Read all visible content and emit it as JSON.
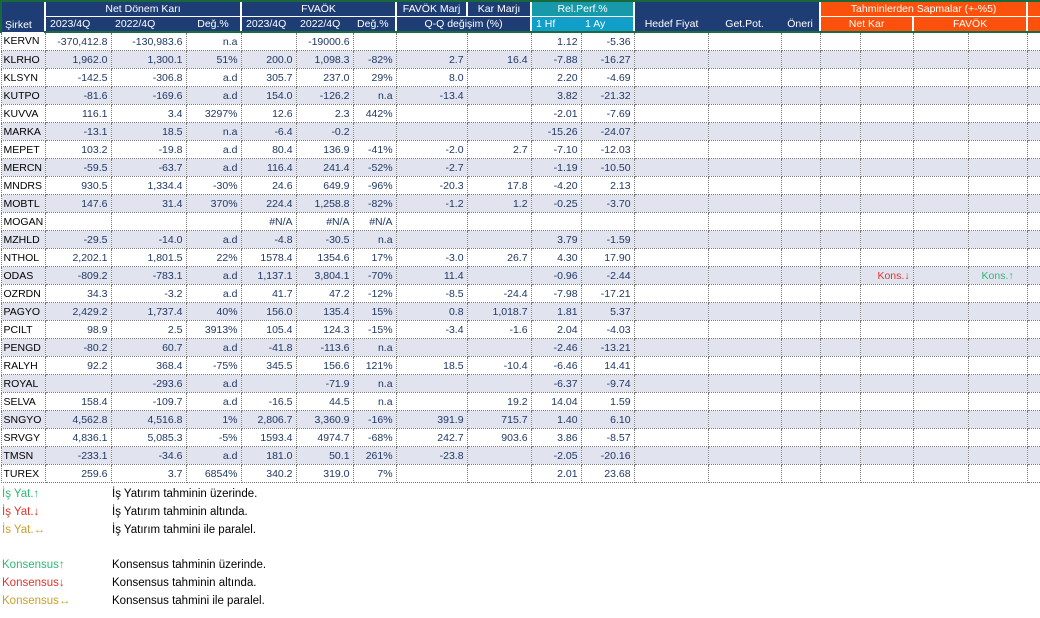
{
  "header": {
    "sirket": "Şirket",
    "groups": {
      "ndk": "Net Dönem Karı",
      "fvaok": "FVAÖK",
      "favok_marj": "FAVÖK Marj",
      "kar_marji": "Kar Marjı",
      "rel_perf": "Rel.Perf.%",
      "sapmalar": "Tahminlerden Sapmalar (+-%5)"
    },
    "sub": {
      "q23": "2023/4Q",
      "q22": "2022/4Q",
      "chg": "Değ.%",
      "qq": "Q-Q değişim (%)",
      "hf": "1 Hf",
      "ay": "1 Ay",
      "hedef": "Hedef Fiyat",
      "getpot": "Get.Pot.",
      "oneri": "Öneri",
      "netkar": "Net Kar",
      "favok": "FAVÖK"
    }
  },
  "rows": [
    {
      "ticker": "KERVN",
      "ndk23": "-370,412.8",
      "ndk22": "-130,983.6",
      "ndkchg": "n.a",
      "fv23": "",
      "fv22": "-19000.6",
      "fvchg": "",
      "qq": "",
      "kar": "",
      "hf": "1.12",
      "ay": "-5.36",
      "hedef": "",
      "getpot": "",
      "oneri": "",
      "nk_a": "",
      "nk_b": "",
      "fv_a": "",
      "fv_b": ""
    },
    {
      "ticker": "KLRHO",
      "ndk23": "1,962.0",
      "ndk22": "1,300.1",
      "ndkchg": "51%",
      "fv23": "200.0",
      "fv22": "1,098.3",
      "fvchg": "-82%",
      "qq": "2.7",
      "kar": "16.4",
      "hf": "-7.88",
      "ay": "-16.27",
      "hedef": "",
      "getpot": "",
      "oneri": "",
      "nk_a": "",
      "nk_b": "",
      "fv_a": "",
      "fv_b": ""
    },
    {
      "ticker": "KLSYN",
      "ndk23": "-142.5",
      "ndk22": "-306.8",
      "ndkchg": "a.d",
      "fv23": "305.7",
      "fv22": "237.0",
      "fvchg": "29%",
      "qq": "8.0",
      "kar": "",
      "hf": "2.20",
      "ay": "-4.69",
      "hedef": "",
      "getpot": "",
      "oneri": "",
      "nk_a": "",
      "nk_b": "",
      "fv_a": "",
      "fv_b": ""
    },
    {
      "ticker": "KUTPO",
      "ndk23": "-81.6",
      "ndk22": "-169.6",
      "ndkchg": "a.d",
      "fv23": "154.0",
      "fv22": "-126.2",
      "fvchg": "n.a",
      "qq": "-13.4",
      "kar": "",
      "hf": "3.82",
      "ay": "-21.32",
      "hedef": "",
      "getpot": "",
      "oneri": "",
      "nk_a": "",
      "nk_b": "",
      "fv_a": "",
      "fv_b": ""
    },
    {
      "ticker": "KUVVA",
      "ndk23": "116.1",
      "ndk22": "3.4",
      "ndkchg": "3297%",
      "fv23": "12.6",
      "fv22": "2.3",
      "fvchg": "442%",
      "qq": "",
      "kar": "",
      "hf": "-2.01",
      "ay": "-7.69",
      "hedef": "",
      "getpot": "",
      "oneri": "",
      "nk_a": "",
      "nk_b": "",
      "fv_a": "",
      "fv_b": ""
    },
    {
      "ticker": "MARKA",
      "ndk23": "-13.1",
      "ndk22": "18.5",
      "ndkchg": "n.a",
      "fv23": "-6.4",
      "fv22": "-0.2",
      "fvchg": "",
      "qq": "",
      "kar": "",
      "hf": "-15.26",
      "ay": "-24.07",
      "hedef": "",
      "getpot": "",
      "oneri": "",
      "nk_a": "",
      "nk_b": "",
      "fv_a": "",
      "fv_b": ""
    },
    {
      "ticker": "MEPET",
      "ndk23": "103.2",
      "ndk22": "-19.8",
      "ndkchg": "a.d",
      "fv23": "80.4",
      "fv22": "136.9",
      "fvchg": "-41%",
      "qq": "-2.0",
      "kar": "2.7",
      "hf": "-7.10",
      "ay": "-12.03",
      "hedef": "",
      "getpot": "",
      "oneri": "",
      "nk_a": "",
      "nk_b": "",
      "fv_a": "",
      "fv_b": ""
    },
    {
      "ticker": "MERCN",
      "ndk23": "-59.5",
      "ndk22": "-63.7",
      "ndkchg": "a.d",
      "fv23": "116.4",
      "fv22": "241.4",
      "fvchg": "-52%",
      "qq": "-2.7",
      "kar": "",
      "hf": "-1.19",
      "ay": "-10.50",
      "hedef": "",
      "getpot": "",
      "oneri": "",
      "nk_a": "",
      "nk_b": "",
      "fv_a": "",
      "fv_b": ""
    },
    {
      "ticker": "MNDRS",
      "ndk23": "930.5",
      "ndk22": "1,334.4",
      "ndkchg": "-30%",
      "fv23": "24.6",
      "fv22": "649.9",
      "fvchg": "-96%",
      "qq": "-20.3",
      "kar": "17.8",
      "hf": "-4.20",
      "ay": "2.13",
      "hedef": "",
      "getpot": "",
      "oneri": "",
      "nk_a": "",
      "nk_b": "",
      "fv_a": "",
      "fv_b": ""
    },
    {
      "ticker": "MOBTL",
      "ndk23": "147.6",
      "ndk22": "31.4",
      "ndkchg": "370%",
      "fv23": "224.4",
      "fv22": "1,258.8",
      "fvchg": "-82%",
      "qq": "-1.2",
      "kar": "1.2",
      "hf": "-0.25",
      "ay": "-3.70",
      "hedef": "",
      "getpot": "",
      "oneri": "",
      "nk_a": "",
      "nk_b": "",
      "fv_a": "",
      "fv_b": ""
    },
    {
      "ticker": "MOGAN",
      "ndk23": "",
      "ndk22": "",
      "ndkchg": "",
      "fv23": "#N/A",
      "fv22": "#N/A",
      "fvchg": "#N/A",
      "qq": "",
      "kar": "",
      "hf": "",
      "ay": "",
      "hedef": "",
      "getpot": "",
      "oneri": "",
      "nk_a": "",
      "nk_b": "",
      "fv_a": "",
      "fv_b": ""
    },
    {
      "ticker": "MZHLD",
      "ndk23": "-29.5",
      "ndk22": "-14.0",
      "ndkchg": "a.d",
      "fv23": "-4.8",
      "fv22": "-30.5",
      "fvchg": "n.a",
      "qq": "",
      "kar": "",
      "hf": "3.79",
      "ay": "-1.59",
      "hedef": "",
      "getpot": "",
      "oneri": "",
      "nk_a": "",
      "nk_b": "",
      "fv_a": "",
      "fv_b": ""
    },
    {
      "ticker": "NTHOL",
      "ndk23": "2,202.1",
      "ndk22": "1,801.5",
      "ndkchg": "22%",
      "fv23": "1578.4",
      "fv22": "1354.6",
      "fvchg": "17%",
      "qq": "-3.0",
      "kar": "26.7",
      "hf": "4.30",
      "ay": "17.90",
      "hedef": "",
      "getpot": "",
      "oneri": "",
      "nk_a": "",
      "nk_b": "",
      "fv_a": "",
      "fv_b": ""
    },
    {
      "ticker": "ODAS",
      "ndk23": "-809.2",
      "ndk22": "-783.1",
      "ndkchg": "a.d",
      "fv23": "1,137.1",
      "fv22": "3,804.1",
      "fvchg": "-70%",
      "qq": "11.4",
      "kar": "",
      "hf": "-0.96",
      "ay": "-2.44",
      "hedef": "",
      "getpot": "",
      "oneri": "",
      "nk_a": "",
      "nk_b": "Kons.↓",
      "fv_a": "",
      "fv_b": "Kons.↑"
    },
    {
      "ticker": "OZRDN",
      "ndk23": "34.3",
      "ndk22": "-3.2",
      "ndkchg": "a.d",
      "fv23": "41.7",
      "fv22": "47.2",
      "fvchg": "-12%",
      "qq": "-8.5",
      "kar": "-24.4",
      "hf": "-7.98",
      "ay": "-17.21",
      "hedef": "",
      "getpot": "",
      "oneri": "",
      "nk_a": "",
      "nk_b": "",
      "fv_a": "",
      "fv_b": ""
    },
    {
      "ticker": "PAGYO",
      "ndk23": "2,429.2",
      "ndk22": "1,737.4",
      "ndkchg": "40%",
      "fv23": "156.0",
      "fv22": "135.4",
      "fvchg": "15%",
      "qq": "0.8",
      "kar": "1,018.7",
      "hf": "1.81",
      "ay": "5.37",
      "hedef": "",
      "getpot": "",
      "oneri": "",
      "nk_a": "",
      "nk_b": "",
      "fv_a": "",
      "fv_b": ""
    },
    {
      "ticker": "PCILT",
      "ndk23": "98.9",
      "ndk22": "2.5",
      "ndkchg": "3913%",
      "fv23": "105.4",
      "fv22": "124.3",
      "fvchg": "-15%",
      "qq": "-3.4",
      "kar": "-1.6",
      "hf": "2.04",
      "ay": "-4.03",
      "hedef": "",
      "getpot": "",
      "oneri": "",
      "nk_a": "",
      "nk_b": "",
      "fv_a": "",
      "fv_b": ""
    },
    {
      "ticker": "PENGD",
      "ndk23": "-80.2",
      "ndk22": "60.7",
      "ndkchg": "a.d",
      "fv23": "-41.8",
      "fv22": "-113.6",
      "fvchg": "n.a",
      "qq": "",
      "kar": "",
      "hf": "-2.46",
      "ay": "-13.21",
      "hedef": "",
      "getpot": "",
      "oneri": "",
      "nk_a": "",
      "nk_b": "",
      "fv_a": "",
      "fv_b": ""
    },
    {
      "ticker": "RALYH",
      "ndk23": "92.2",
      "ndk22": "368.4",
      "ndkchg": "-75%",
      "fv23": "345.5",
      "fv22": "156.6",
      "fvchg": "121%",
      "qq": "18.5",
      "kar": "-10.4",
      "hf": "-6.46",
      "ay": "14.41",
      "hedef": "",
      "getpot": "",
      "oneri": "",
      "nk_a": "",
      "nk_b": "",
      "fv_a": "",
      "fv_b": ""
    },
    {
      "ticker": "ROYAL",
      "ndk23": "",
      "ndk22": "-293.6",
      "ndkchg": "a.d",
      "fv23": "",
      "fv22": "-71.9",
      "fvchg": "n.a",
      "qq": "",
      "kar": "",
      "hf": "-6.37",
      "ay": "-9.74",
      "hedef": "",
      "getpot": "",
      "oneri": "",
      "nk_a": "",
      "nk_b": "",
      "fv_a": "",
      "fv_b": ""
    },
    {
      "ticker": "SELVA",
      "ndk23": "158.4",
      "ndk22": "-109.7",
      "ndkchg": "a.d",
      "fv23": "-16.5",
      "fv22": "44.5",
      "fvchg": "n.a",
      "qq": "",
      "kar": "19.2",
      "hf": "14.04",
      "ay": "1.59",
      "hedef": "",
      "getpot": "",
      "oneri": "",
      "nk_a": "",
      "nk_b": "",
      "fv_a": "",
      "fv_b": ""
    },
    {
      "ticker": "SNGYO",
      "ndk23": "4,562.8",
      "ndk22": "4,516.8",
      "ndkchg": "1%",
      "fv23": "2,806.7",
      "fv22": "3,360.9",
      "fvchg": "-16%",
      "qq": "391.9",
      "kar": "715.7",
      "hf": "1.40",
      "ay": "6.10",
      "hedef": "",
      "getpot": "",
      "oneri": "",
      "nk_a": "",
      "nk_b": "",
      "fv_a": "",
      "fv_b": ""
    },
    {
      "ticker": "SRVGY",
      "ndk23": "4,836.1",
      "ndk22": "5,085.3",
      "ndkchg": "-5%",
      "fv23": "1593.4",
      "fv22": "4974.7",
      "fvchg": "-68%",
      "qq": "242.7",
      "kar": "903.6",
      "hf": "3.86",
      "ay": "-8.57",
      "hedef": "",
      "getpot": "",
      "oneri": "",
      "nk_a": "",
      "nk_b": "",
      "fv_a": "",
      "fv_b": ""
    },
    {
      "ticker": "TMSN",
      "ndk23": "-233.1",
      "ndk22": "-34.6",
      "ndkchg": "a.d",
      "fv23": "181.0",
      "fv22": "50.1",
      "fvchg": "261%",
      "qq": "-23.8",
      "kar": "",
      "hf": "-2.05",
      "ay": "-20.16",
      "hedef": "",
      "getpot": "",
      "oneri": "",
      "nk_a": "",
      "nk_b": "",
      "fv_a": "",
      "fv_b": ""
    },
    {
      "ticker": "TUREX",
      "ndk23": "259.6",
      "ndk22": "3.7",
      "ndkchg": "6854%",
      "fv23": "340.2",
      "fv22": "319.0",
      "fvchg": "7%",
      "qq": "",
      "kar": "",
      "hf": "2.01",
      "ay": "23.68",
      "hedef": "",
      "getpot": "",
      "oneri": "",
      "nk_a": "",
      "nk_b": "",
      "fv_a": "",
      "fv_b": ""
    }
  ],
  "legend": [
    {
      "label": "İş Yat.↑",
      "color": "green",
      "desc": "İş Yatırım tahminin üzerinde."
    },
    {
      "label": "İş Yat.↓",
      "color": "red",
      "desc": "İş Yatırım tahminin altında."
    },
    {
      "label": "İs Yat.↔",
      "color": "gold",
      "desc": "İş Yatırım tahmini ile paralel."
    },
    {
      "label": "Konsensus↑",
      "color": "green",
      "desc": "Konsensus tahminin üzerinde."
    },
    {
      "label": "Konsensus↓",
      "color": "red",
      "desc": "Konsensus tahminin altında."
    },
    {
      "label": "Konsensus↔",
      "color": "gold",
      "desc": "Konsensus tahmini ile paralel."
    }
  ],
  "colors": {
    "header_navy": "#1D3D74",
    "header_teal": "#1899A9",
    "header_cyan": "#119FC9",
    "header_orange": "#FB510D",
    "outer_green": "#17693C",
    "row_stripe": "#E1E3EF",
    "number_text": "#1F3864",
    "up_green": "#2EB873",
    "down_red": "#E0342E",
    "parallel_gold": "#C7A02B"
  }
}
